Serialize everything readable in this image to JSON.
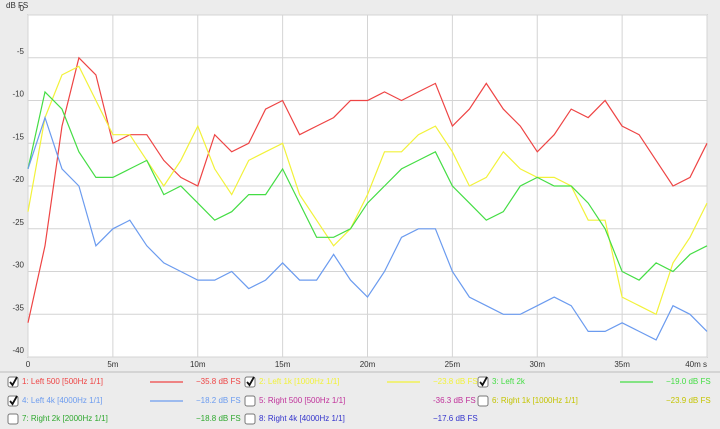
{
  "chart_data": {
    "type": "line",
    "y_label": "dB FS",
    "xlim": [
      0,
      40
    ],
    "ylim": [
      -40,
      0
    ],
    "xticks": [
      0,
      {
        "value": 5,
        "label": "5m"
      },
      {
        "value": 10,
        "label": "10m"
      },
      {
        "value": 15,
        "label": "15m"
      },
      {
        "value": 20,
        "label": "20m"
      },
      {
        "value": 25,
        "label": "25m"
      },
      {
        "value": 30,
        "label": "30m"
      },
      {
        "value": 35,
        "label": "35m"
      },
      {
        "value": 40,
        "label": "40m s"
      }
    ],
    "yticks": [
      0,
      -5,
      -10,
      -15,
      -20,
      -25,
      -30,
      -35,
      -40
    ],
    "grid": true,
    "x": [
      0,
      1,
      2,
      3,
      4,
      5,
      6,
      7,
      8,
      9,
      10,
      11,
      12,
      13,
      14,
      15,
      16,
      17,
      18,
      19,
      20,
      21,
      22,
      23,
      24,
      25,
      26,
      27,
      28,
      29,
      30,
      31,
      32,
      33,
      34,
      35,
      36,
      37,
      38,
      39,
      40
    ],
    "series": [
      {
        "name": "1: Left 500 [500Hz 1/1]",
        "color": "#ee4444",
        "checked": true,
        "reading": "−35.8 dB FS",
        "values": [
          -36,
          -27,
          -13,
          -5,
          -7,
          -15,
          -14,
          -14,
          -17,
          -19,
          -20,
          -14,
          -16,
          -15,
          -11,
          -10,
          -14,
          -13,
          -12,
          -10,
          -10,
          -9,
          -10,
          -9,
          -8,
          -13,
          -11,
          -8,
          -11,
          -13,
          -16,
          -14,
          -11,
          -12,
          -10,
          -13,
          -14,
          -17,
          -20,
          -19,
          -15
        ]
      },
      {
        "name": "2: Left 1k [1000Hz 1/1]",
        "color": "#f2f23a",
        "checked": true,
        "reading": "−23.8 dB FS",
        "values": [
          -23,
          -12,
          -7,
          -6,
          -10,
          -14,
          -14,
          -17,
          -20,
          -17,
          -13,
          -18,
          -21,
          -17,
          -16,
          -15,
          -21,
          -24,
          -27,
          -25,
          -21,
          -16,
          -16,
          -14,
          -13,
          -16,
          -20,
          -19,
          -16,
          -18,
          -19,
          -19,
          -20,
          -24,
          -24,
          -33,
          -34,
          -35,
          -29,
          -26,
          -22
        ]
      },
      {
        "name": "3: Left 2k",
        "color": "#44dd44",
        "checked": true,
        "reading": "−19.0 dB FS",
        "values": [
          -18,
          -9,
          -11,
          -16,
          -19,
          -19,
          -18,
          -17,
          -21,
          -20,
          -22,
          -24,
          -23,
          -21,
          -21,
          -18,
          -22,
          -26,
          -26,
          -25,
          -22,
          -20,
          -18,
          -17,
          -16,
          -20,
          -22,
          -24,
          -23,
          -20,
          -19,
          -20,
          -20,
          -22,
          -25,
          -30,
          -31,
          -29,
          -30,
          -28,
          -27
        ]
      },
      {
        "name": "4: Left 4k [4000Hz 1/1]",
        "color": "#6b9bef",
        "checked": true,
        "reading": "−18.2 dB FS",
        "values": [
          -18,
          -12,
          -18,
          -20,
          -27,
          -25,
          -24,
          -27,
          -29,
          -30,
          -31,
          -31,
          -30,
          -32,
          -31,
          -29,
          -31,
          -31,
          -28,
          -31,
          -33,
          -30,
          -26,
          -25,
          -25,
          -30,
          -33,
          -34,
          -35,
          -35,
          -34,
          -33,
          -34,
          -37,
          -37,
          -36,
          -37,
          -38,
          -34,
          -35,
          -37
        ]
      },
      {
        "name": "5: Right 500 [500Hz 1/1]",
        "color": "#c0309a",
        "checked": false,
        "reading": "-36.3 dB FS"
      },
      {
        "name": "6: Right 1k [1000Hz 1/1]",
        "color": "#c4c400",
        "checked": false,
        "reading": "−23.9 dB FS"
      },
      {
        "name": "7: Right 2k [2000Hz 1/1]",
        "color": "#2ea82e",
        "checked": false,
        "reading": "−18.8 dB FS"
      },
      {
        "name": "8: Right 4k [4000Hz 1/1]",
        "color": "#3333cc",
        "checked": false,
        "reading": "−17.6 dB FS"
      }
    ]
  }
}
